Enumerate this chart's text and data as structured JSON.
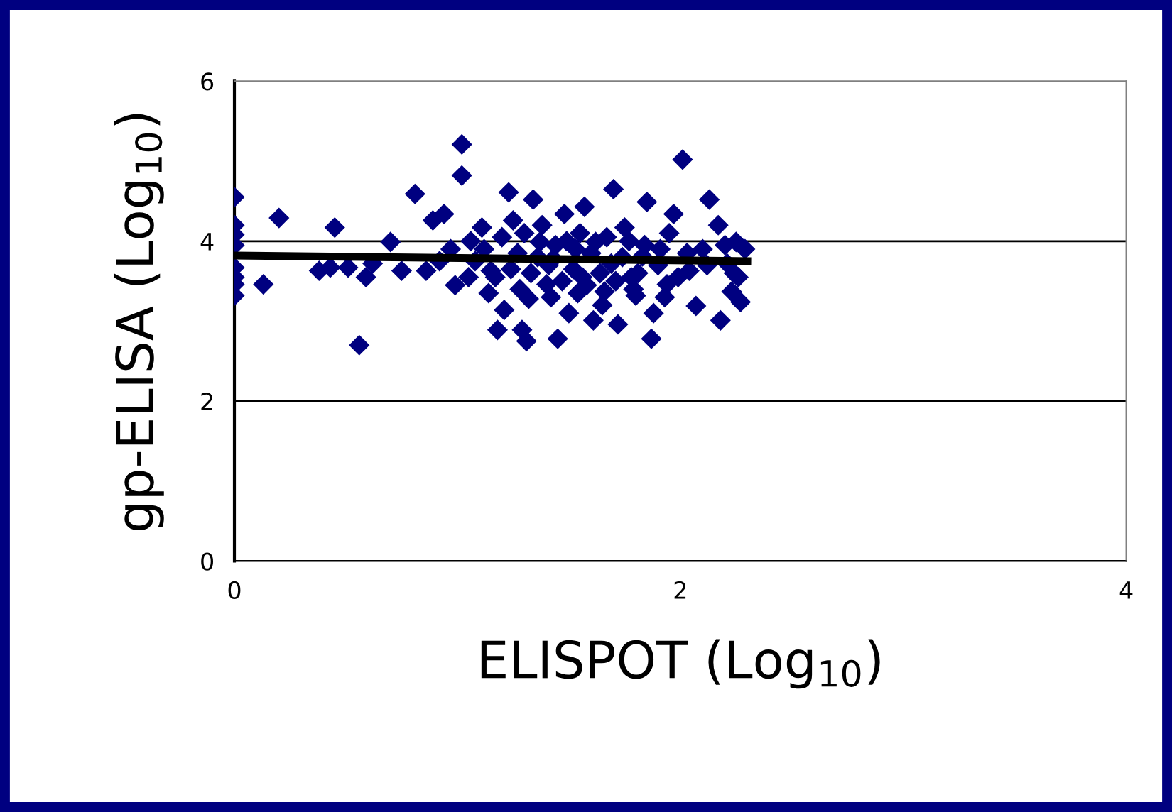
{
  "chart_data": {
    "type": "scatter",
    "xlabel": "ELISPOT (Log$_{10}$)",
    "ylabel": "gp-ELISA (Log$_{10}$)",
    "xlim": [
      0,
      4
    ],
    "xticks": [
      0,
      2,
      4
    ],
    "ylim": [
      0,
      6
    ],
    "yticks": [
      0,
      2,
      4,
      6
    ],
    "grid": "y",
    "marker": "diamond",
    "series": [
      {
        "color": "#000080",
        "x": [
          0,
          0,
          0,
          0,
          0,
          0,
          0,
          0,
          0.13,
          0.2,
          0.43,
          0.45,
          0.38,
          0.51,
          0.56,
          0.59,
          0.62,
          0.7,
          0.75,
          0.81,
          0.86,
          0.89,
          0.94,
          0.97,
          1.02,
          1.02,
          1.05,
          1.11,
          1.15,
          1.18,
          1.21,
          1.23,
          1.25,
          1.29,
          1.31,
          1.32,
          1.34,
          1.37,
          1.4,
          1.43,
          1.45,
          1.48,
          1.5,
          1.53,
          1.56,
          1.57,
          1.61,
          1.62,
          1.66,
          1.69,
          1.7,
          1.72,
          1.75,
          1.78,
          1.8,
          1.83,
          1.85,
          1.87,
          1.88,
          1.91,
          1.94,
          1.97,
          2.01,
          2.04,
          2.07,
          2.1,
          2.13,
          2.17,
          2.18,
          2.21,
          2.23,
          2.25,
          2.26,
          2.27,
          2.29,
          1.08,
          1.12,
          1.17,
          1.2,
          1.24,
          1.27,
          1.3,
          1.33,
          1.36,
          1.38,
          1.41,
          1.44,
          1.47,
          1.49,
          1.52,
          1.55,
          1.58,
          1.6,
          1.64,
          1.67,
          1.71,
          1.74,
          1.77,
          1.81,
          1.84,
          1.9,
          1.95,
          1.99,
          2.03,
          2.12,
          2.2,
          2.24,
          1.28,
          1.42,
          1.54,
          1.65,
          1.79,
          1.93,
          0.92,
          0.99,
          1.06,
          1.14
        ],
        "values": [
          4.55,
          4.2,
          4.08,
          3.95,
          3.67,
          3.55,
          3.46,
          3.32,
          3.46,
          4.29,
          3.67,
          4.17,
          3.63,
          3.67,
          2.7,
          3.55,
          3.72,
          3.99,
          3.63,
          4.59,
          3.63,
          4.26,
          4.34,
          3.9,
          5.21,
          4.82,
          3.55,
          4.17,
          3.63,
          2.89,
          3.14,
          4.61,
          4.26,
          2.89,
          2.75,
          3.28,
          4.52,
          3.99,
          3.46,
          3.78,
          2.78,
          4.34,
          3.1,
          3.9,
          3.55,
          4.43,
          3.01,
          3.99,
          3.37,
          3.72,
          4.65,
          2.96,
          4.17,
          3.55,
          3.32,
          3.81,
          4.49,
          2.78,
          3.1,
          3.9,
          3.46,
          4.34,
          5.02,
          3.63,
          3.19,
          3.9,
          4.52,
          4.2,
          3.01,
          3.72,
          3.37,
          3.99,
          3.55,
          3.24,
          3.9,
          3.75,
          3.9,
          3.55,
          4.05,
          3.65,
          3.85,
          4.1,
          3.6,
          3.8,
          4.2,
          3.7,
          3.95,
          3.5,
          4.0,
          3.65,
          4.1,
          3.45,
          3.85,
          3.6,
          4.05,
          3.5,
          3.8,
          4.0,
          3.6,
          3.95,
          3.7,
          4.1,
          3.55,
          3.85,
          3.7,
          3.95,
          3.6,
          3.4,
          3.3,
          3.35,
          3.2,
          3.4,
          3.3,
          3.75,
          3.45,
          4.0,
          3.35
        ]
      },
      {
        "type": "line",
        "color": "#000000",
        "marker": "none",
        "x": [
          0,
          2.3
        ],
        "values": [
          3.82,
          3.75
        ]
      }
    ]
  }
}
